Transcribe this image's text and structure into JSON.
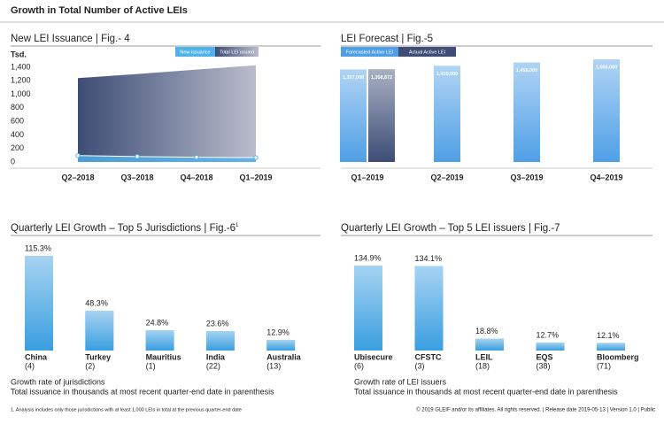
{
  "title": "Growth in Total Number of Active LEIs",
  "chart_data": [
    {
      "type": "area",
      "title": "New LEI Issuance  |  Fig.- 4",
      "y_label": "Tsd.",
      "categories": [
        "Q2–2018",
        "Q3–2018",
        "Q4–2018",
        "Q1–2019"
      ],
      "series": [
        {
          "name": "New issuance",
          "color": "#4fb3ea",
          "values": [
            95,
            80,
            70,
            65
          ]
        },
        {
          "name": "Total LEI issued",
          "color": "#3d4d75",
          "values": [
            1240,
            1300,
            1365,
            1430
          ]
        }
      ],
      "ylim": [
        0,
        1400
      ],
      "yticks": [
        0,
        200,
        400,
        600,
        800,
        {
          "value": 1000,
          "label": "1,000"
        },
        {
          "value": 1200,
          "label": "1,200"
        },
        {
          "value": 1400,
          "label": "1,400"
        }
      ]
    },
    {
      "type": "bar",
      "title": "LEI Forecast  |  Fig.-5",
      "categories": [
        "Q1–2019",
        "Q2–2019",
        "Q3–2019",
        "Q4–2019"
      ],
      "series": [
        {
          "name": "Forecasted Active LEI",
          "color": "#4f9fe6",
          "values": [
            1357000,
            1410000,
            1458000,
            1506000
          ],
          "value_labels": [
            "1,357,000",
            "1,410,000",
            "1,458,000",
            "1,506,000"
          ]
        },
        {
          "name": "Actual Active LEI",
          "color": "#3d4d75",
          "values": [
            1358872,
            null,
            null,
            null
          ],
          "value_labels": [
            "1,358,872",
            null,
            null,
            null
          ]
        }
      ]
    },
    {
      "type": "bar",
      "title": "Quarterly LEI Growth – Top 5 Jurisdictions  |  Fig.-6",
      "title_superscript": "1",
      "categories": [
        "China",
        "Turkey",
        "Mauritius",
        "India",
        "Australia"
      ],
      "category_notes": [
        "(4)",
        "(2)",
        "(1)",
        "(22)",
        "(13)"
      ],
      "values": [
        115.3,
        48.3,
        24.8,
        23.6,
        12.9
      ],
      "value_labels": [
        "115.3%",
        "48.3%",
        "24.8%",
        "23.6%",
        "12.9%"
      ],
      "color": "#3a9ee0",
      "notes": [
        "Growth rate of jurisdictions",
        "Total issuance in thousands at most recent quarter-end date in parenthesis"
      ]
    },
    {
      "type": "bar",
      "title": "Quarterly LEI Growth – Top 5 LEI issuers  |  Fig.-7",
      "categories": [
        "Ubisecure",
        "CFSTC",
        "LEIL",
        "EQS",
        "Bloomberg"
      ],
      "category_notes": [
        "(6)",
        "(3)",
        "(18)",
        "(38)",
        "(71)"
      ],
      "values": [
        134.9,
        134.1,
        18.8,
        12.7,
        12.1
      ],
      "value_labels": [
        "134.9%",
        "134.1%",
        "18.8%",
        "12.7%",
        "12.1%"
      ],
      "color": "#3a9ee0",
      "notes": [
        "Growth rate of LEI issuers",
        "Total issuance in thousands at most recent quarter-end date in parenthesis"
      ]
    }
  ],
  "footnote": "1. Analysis includes only those jurisdictions with at least 1,000 LEIs in total at the previous quarter-end date",
  "copyright": "© 2019 GLEIF and/or its affiliates. All rights reserved.  |  Release date 2019-05-13  |  Version 1.0  |  Public"
}
